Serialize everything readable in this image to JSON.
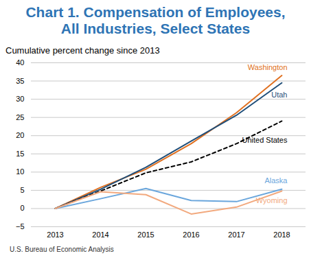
{
  "chart_data": {
    "type": "line",
    "title": "Chart 1. Compensation of Employees, All Industries, Select States",
    "subtitle": "Cumulative percent change since 2013",
    "caption": "U.S. Bureau of Economic Analysis",
    "categories": [
      "2013",
      "2014",
      "2015",
      "2016",
      "2017",
      "2018"
    ],
    "series": [
      {
        "name": "Washington",
        "color": "#e07020",
        "line_style": "solid",
        "values": [
          0,
          5.8,
          10.8,
          17.8,
          26.3,
          36.5
        ]
      },
      {
        "name": "Utah",
        "color": "#1f4e79",
        "line_style": "solid",
        "values": [
          0,
          5.3,
          11.3,
          18.5,
          25.6,
          34.5
        ]
      },
      {
        "name": "United States",
        "color": "#000000",
        "line_style": "dashed",
        "values": [
          0,
          4.8,
          9.8,
          12.8,
          17.8,
          24
        ]
      },
      {
        "name": "Alaska",
        "color": "#6aa6dc",
        "line_style": "solid",
        "values": [
          0,
          2.7,
          5.5,
          2.2,
          1.9,
          5.3
        ]
      },
      {
        "name": "Wyoming",
        "color": "#f2a97e",
        "line_style": "solid",
        "values": [
          0,
          4.6,
          3.8,
          -1.5,
          0.4,
          4.8
        ]
      }
    ],
    "ylim": [
      -5,
      40
    ],
    "yticks": [
      {
        "value": -5,
        "label": "−5"
      },
      0,
      5,
      10,
      15,
      20,
      25,
      30,
      35,
      40
    ],
    "grid": true
  }
}
